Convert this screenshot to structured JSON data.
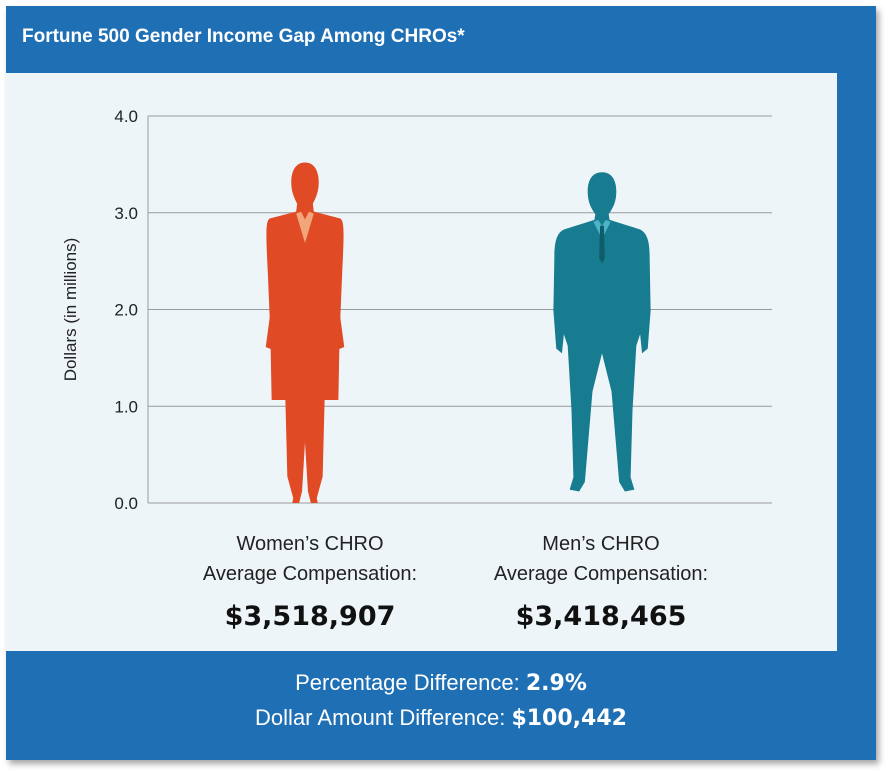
{
  "header": {
    "title": "Fortune 500 Gender Income Gap Among CHROs*"
  },
  "colors": {
    "frame": "#1f6fb5",
    "panel": "#eef5f9",
    "women": "#e04a25",
    "women_accent": "#f0a57a",
    "men": "#177c8f",
    "men_accent": "#4fb3c8",
    "grid": "#9a9a9a"
  },
  "chart_data": {
    "type": "bar",
    "categories": [
      "Women's CHRO",
      "Men's CHRO"
    ],
    "values": [
      3.518907,
      3.418465
    ],
    "ylabel": "Dollars (in millions)",
    "ylim": [
      0,
      4
    ],
    "yticks": [
      "0.0",
      "1.0",
      "2.0",
      "3.0",
      "4.0"
    ],
    "grid": true
  },
  "women": {
    "line1": "Women’s CHRO",
    "line2": "Average Compensation:",
    "amount": "$3,518,907"
  },
  "men": {
    "line1": "Men’s CHRO",
    "line2": "Average Compensation:",
    "amount": "$3,418,465"
  },
  "footer": {
    "pct_label": "Percentage Difference: ",
    "pct_value": "2.9%",
    "dollar_label": "Dollar Amount Difference: ",
    "dollar_value": "$100,442"
  }
}
